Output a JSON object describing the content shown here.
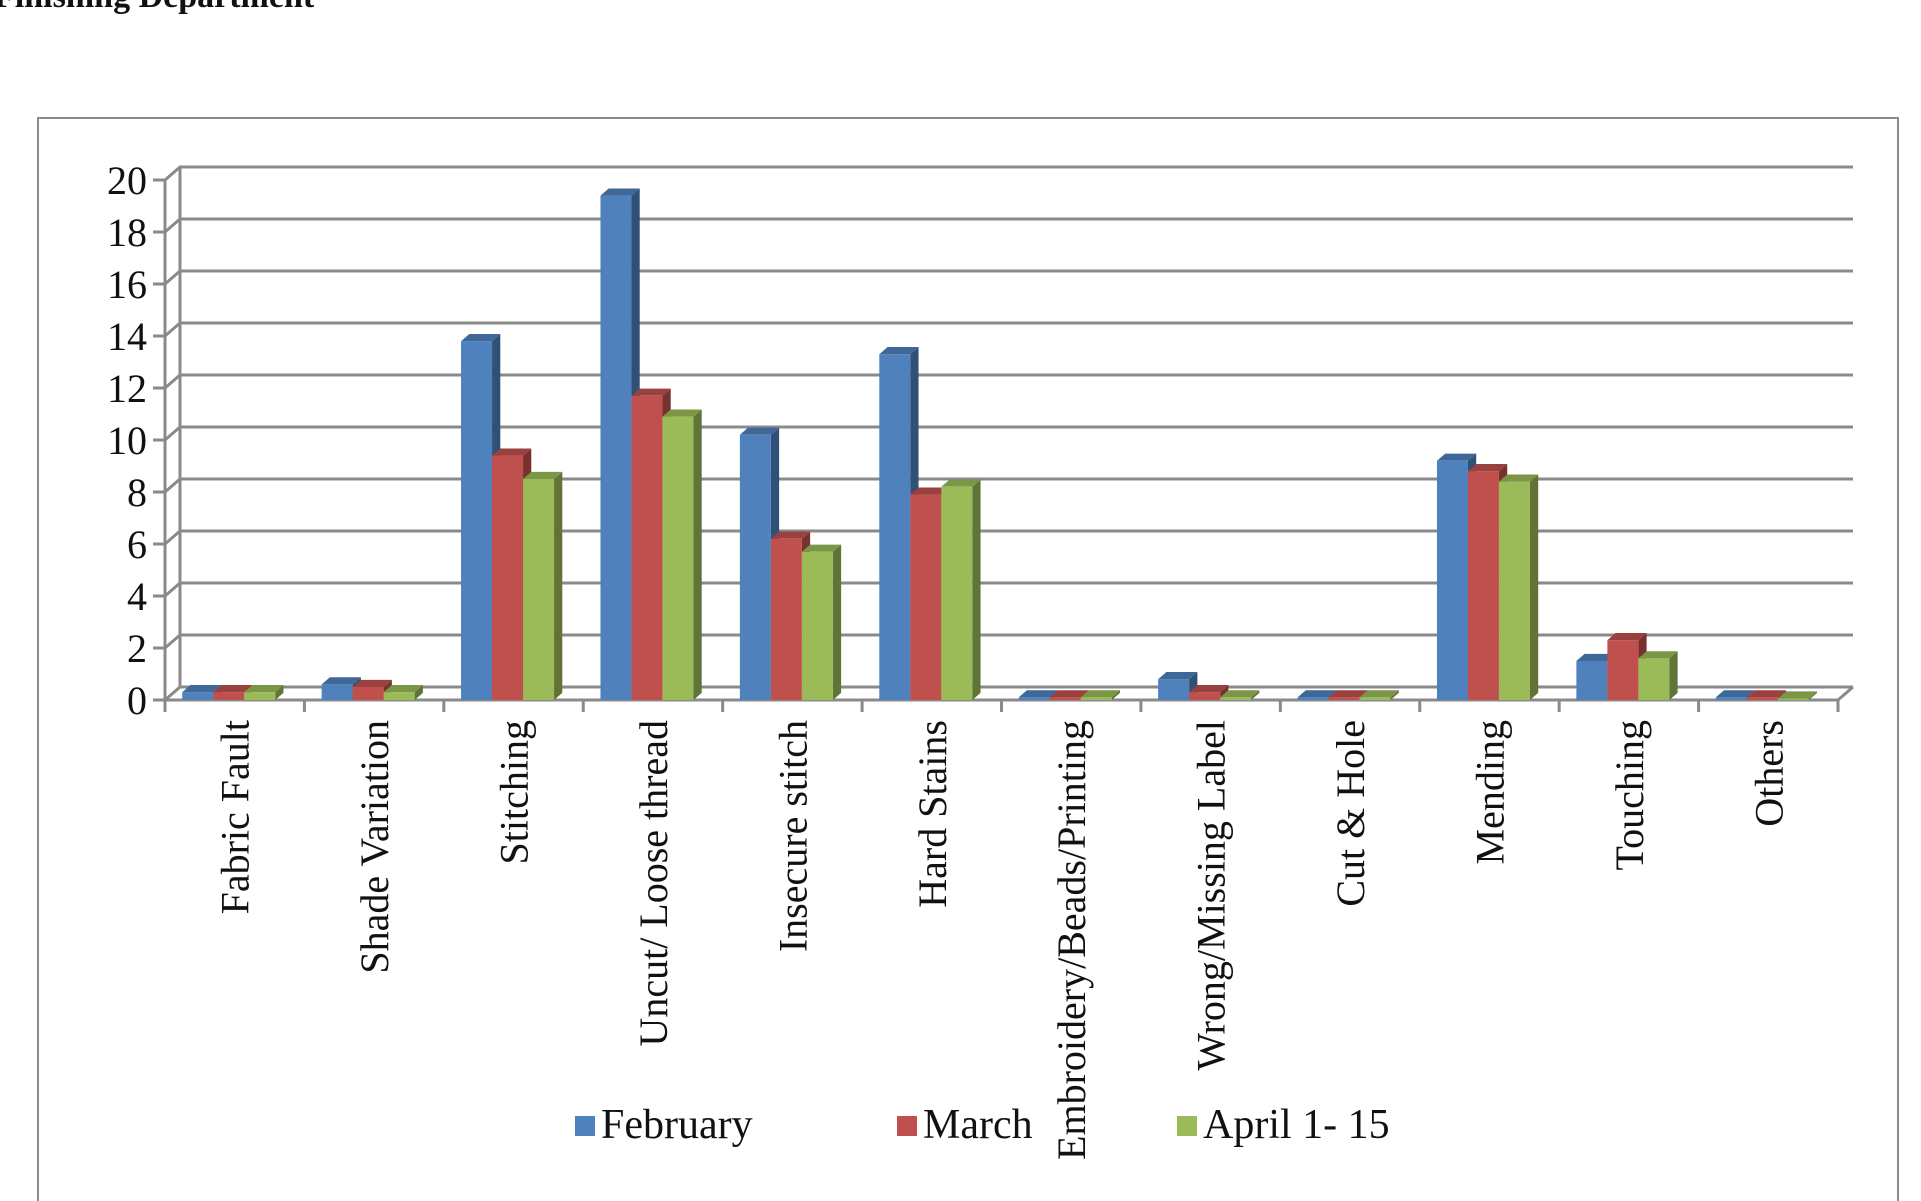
{
  "heading": "Finishing Department",
  "chart_data": {
    "type": "bar",
    "title": "",
    "xlabel": "",
    "ylabel": "",
    "ylim": [
      0,
      20
    ],
    "yticks": [
      0,
      2,
      4,
      6,
      8,
      10,
      12,
      14,
      16,
      18,
      20
    ],
    "grid": true,
    "three_d": true,
    "legend_position": "bottom",
    "categories": [
      "Fabric Fault",
      "Shade Variation",
      "Stitching",
      "Uncut/ Loose thread",
      "Insecure stitch",
      "Hard Stains",
      "Embroidery/Beads/Printing",
      "Wrong/Missing Label",
      "Cut & Hole",
      "Mending",
      "Touching",
      "Others"
    ],
    "series": [
      {
        "name": "February",
        "color": "#4F81BD",
        "values": [
          0.3,
          0.6,
          13.8,
          19.4,
          10.2,
          13.3,
          0.1,
          0.8,
          0.1,
          9.2,
          1.5,
          0.1
        ]
      },
      {
        "name": "March",
        "color": "#C0504D",
        "values": [
          0.3,
          0.5,
          9.4,
          11.7,
          6.2,
          7.9,
          0.1,
          0.3,
          0.1,
          8.8,
          2.3,
          0.1
        ]
      },
      {
        "name": "April 1- 15",
        "color": "#9BBB59",
        "values": [
          0.3,
          0.3,
          8.5,
          10.9,
          5.7,
          8.2,
          0.1,
          0.1,
          0.1,
          8.4,
          1.6,
          0.0
        ]
      }
    ]
  }
}
